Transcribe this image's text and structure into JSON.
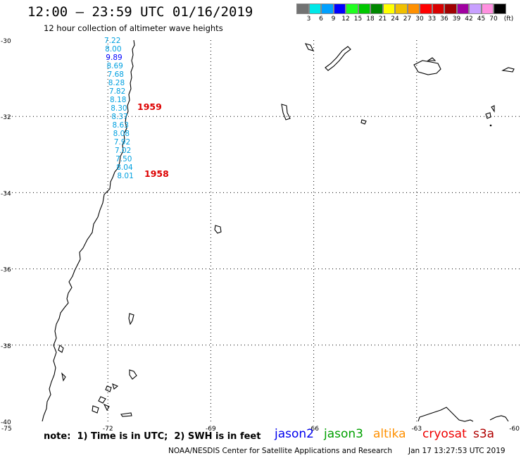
{
  "header": {
    "title": "12:00 – 23:59 UTC 01/16/2019",
    "subtitle": "12 hour collection of altimeter wave heights"
  },
  "legend": {
    "unit": "(ft)",
    "items": [
      {
        "label": "3",
        "color": "#727272"
      },
      {
        "label": "6",
        "color": "#00e8e8"
      },
      {
        "label": "9",
        "color": "#00a0ff"
      },
      {
        "label": "12",
        "color": "#0000ff"
      },
      {
        "label": "15",
        "color": "#20ff20"
      },
      {
        "label": "18",
        "color": "#00c800"
      },
      {
        "label": "21",
        "color": "#008800"
      },
      {
        "label": "24",
        "color": "#ffff00"
      },
      {
        "label": "27",
        "color": "#f0c000"
      },
      {
        "label": "30",
        "color": "#ff9000"
      },
      {
        "label": "33",
        "color": "#ff0000"
      },
      {
        "label": "36",
        "color": "#d80000"
      },
      {
        "label": "39",
        "color": "#a00000"
      },
      {
        "label": "42",
        "color": "#a000a0"
      },
      {
        "label": "45",
        "color": "#c8a0ff"
      },
      {
        "label": "70",
        "color": "#ff90e0"
      },
      {
        "label": "",
        "color": "#000000"
      }
    ]
  },
  "map": {
    "lon_range": [
      -75,
      -60
    ],
    "lat_range": [
      -40,
      -30
    ],
    "lat_ticks": [
      "-30",
      "-32",
      "-34",
      "-36",
      "-38",
      "-40"
    ],
    "lon_ticks": [
      "-75",
      "-72",
      "-69",
      "-66",
      "-63",
      "-60"
    ],
    "grid_lines": "dotted"
  },
  "passes": [
    {
      "time_label": "1959",
      "time_color": "#dd0000",
      "readings": [
        {
          "value": "7.22",
          "color": "#00a0e0"
        },
        {
          "value": "8.00",
          "color": "#00a0e0"
        },
        {
          "value": "9.89",
          "color": "#0000ff"
        },
        {
          "value": "8.69",
          "color": "#00a0e0"
        },
        {
          "value": "7.68",
          "color": "#00a0e0"
        },
        {
          "value": "8.28",
          "color": "#00a0e0"
        },
        {
          "value": "7.82",
          "color": "#00a0e0"
        },
        {
          "value": "8.18",
          "color": "#00a0e0"
        },
        {
          "value": "8.30",
          "color": "#00a0e0"
        }
      ]
    },
    {
      "time_label": "1958",
      "time_color": "#dd0000",
      "readings": [
        {
          "value": "8.37",
          "color": "#00a0e0"
        },
        {
          "value": "8.63",
          "color": "#00a0e0"
        },
        {
          "value": "8.08",
          "color": "#00a0e0"
        },
        {
          "value": "7.92",
          "color": "#00a0e0"
        },
        {
          "value": "7.02",
          "color": "#00a0e0"
        },
        {
          "value": "7.50",
          "color": "#00a0e0"
        },
        {
          "value": "8.04",
          "color": "#00a0e0"
        },
        {
          "value": "8.01",
          "color": "#00a0e0"
        }
      ]
    }
  ],
  "footer": {
    "note": "note:  1) Time is in UTC;  2) SWH is in feet",
    "satellites": [
      {
        "name": "jason2",
        "color": "#0000ee"
      },
      {
        "name": "jason3",
        "color": "#00a000"
      },
      {
        "name": "altika",
        "color": "#ff9000"
      },
      {
        "name": "cryosat",
        "color": "#ee0000"
      },
      {
        "name": "s3a",
        "color": "#b00000"
      }
    ],
    "credit": "NOAA/NESDIS Center for Satellite Applications and Research",
    "timestamp": "Jan 17 13:27:53 UTC 2019"
  }
}
